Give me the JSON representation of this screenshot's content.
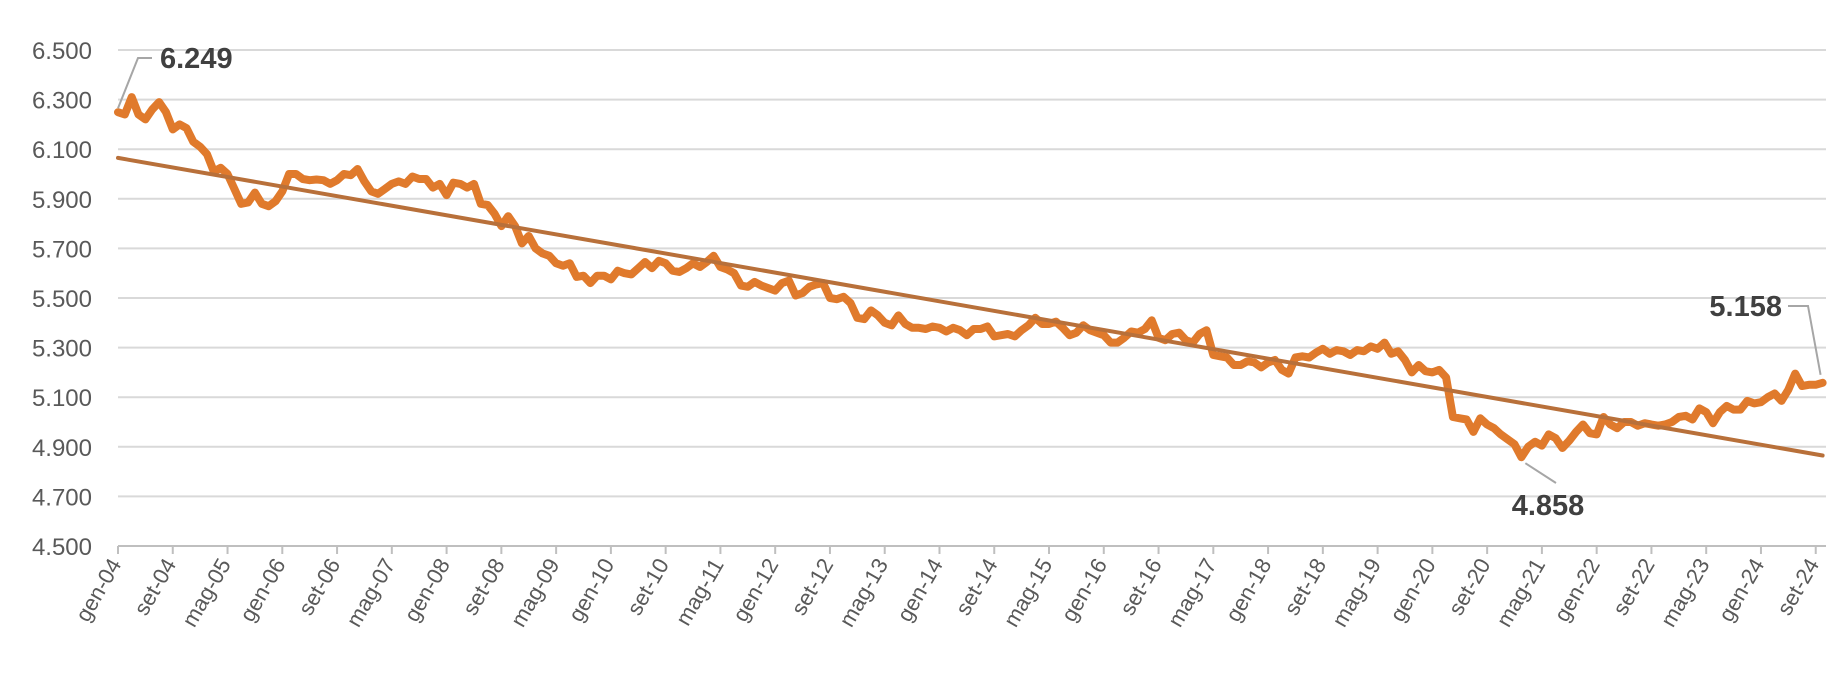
{
  "chart_data": {
    "type": "line",
    "title": "",
    "xlabel": "",
    "ylabel": "",
    "ylim": [
      4500,
      6500
    ],
    "yticks": [
      4500,
      4700,
      4900,
      5100,
      5300,
      5500,
      5700,
      5900,
      6100,
      6300,
      6500
    ],
    "ytick_labels": [
      "4.500",
      "4.700",
      "4.900",
      "5.100",
      "5.300",
      "5.500",
      "5.700",
      "5.900",
      "6.100",
      "6.300",
      "6.500"
    ],
    "grid": true,
    "legend": "none",
    "x_range": [
      "2004-01",
      "2024-10"
    ],
    "x_ticks": [
      {
        "date": "2004-01",
        "label": "gen-04"
      },
      {
        "date": "2004-09",
        "label": "set-04"
      },
      {
        "date": "2005-05",
        "label": "mag-05"
      },
      {
        "date": "2006-01",
        "label": "gen-06"
      },
      {
        "date": "2006-09",
        "label": "set-06"
      },
      {
        "date": "2007-05",
        "label": "mag-07"
      },
      {
        "date": "2008-01",
        "label": "gen-08"
      },
      {
        "date": "2008-09",
        "label": "set-08"
      },
      {
        "date": "2009-05",
        "label": "mag-09"
      },
      {
        "date": "2010-01",
        "label": "gen-10"
      },
      {
        "date": "2010-09",
        "label": "set-10"
      },
      {
        "date": "2011-05",
        "label": "mag-11"
      },
      {
        "date": "2012-01",
        "label": "gen-12"
      },
      {
        "date": "2012-09",
        "label": "set-12"
      },
      {
        "date": "2013-05",
        "label": "mag-13"
      },
      {
        "date": "2014-01",
        "label": "gen-14"
      },
      {
        "date": "2014-09",
        "label": "set-14"
      },
      {
        "date": "2015-05",
        "label": "mag-15"
      },
      {
        "date": "2016-01",
        "label": "gen-16"
      },
      {
        "date": "2016-09",
        "label": "set-16"
      },
      {
        "date": "2017-05",
        "label": "mag-17"
      },
      {
        "date": "2018-01",
        "label": "gen-18"
      },
      {
        "date": "2018-09",
        "label": "set-18"
      },
      {
        "date": "2019-05",
        "label": "mag-19"
      },
      {
        "date": "2020-01",
        "label": "gen-20"
      },
      {
        "date": "2020-09",
        "label": "set-20"
      },
      {
        "date": "2021-05",
        "label": "mag-21"
      },
      {
        "date": "2022-01",
        "label": "gen-22"
      },
      {
        "date": "2022-09",
        "label": "set-22"
      },
      {
        "date": "2023-05",
        "label": "mag-23"
      },
      {
        "date": "2024-01",
        "label": "gen-24"
      },
      {
        "date": "2024-09",
        "label": "set-24"
      }
    ],
    "series": [
      {
        "color": "#E07A2C",
        "points": [
          [
            "2004-01",
            6249
          ],
          [
            "2004-02",
            6240
          ],
          [
            "2004-03",
            6310
          ],
          [
            "2004-04",
            6240
          ],
          [
            "2004-05",
            6220
          ],
          [
            "2004-06",
            6260
          ],
          [
            "2004-07",
            6290
          ],
          [
            "2004-08",
            6250
          ],
          [
            "2004-09",
            6180
          ],
          [
            "2004-10",
            6200
          ],
          [
            "2004-11",
            6185
          ],
          [
            "2004-12",
            6130
          ],
          [
            "2005-01",
            6110
          ],
          [
            "2005-02",
            6080
          ],
          [
            "2005-03",
            6010
          ],
          [
            "2005-04",
            6025
          ],
          [
            "2005-05",
            6000
          ],
          [
            "2005-06",
            5940
          ],
          [
            "2005-07",
            5880
          ],
          [
            "2005-08",
            5885
          ],
          [
            "2005-09",
            5925
          ],
          [
            "2005-10",
            5880
          ],
          [
            "2005-11",
            5870
          ],
          [
            "2005-12",
            5890
          ],
          [
            "2006-01",
            5930
          ],
          [
            "2006-02",
            6000
          ],
          [
            "2006-03",
            6000
          ],
          [
            "2006-04",
            5980
          ],
          [
            "2006-05",
            5975
          ],
          [
            "2006-06",
            5978
          ],
          [
            "2006-07",
            5975
          ],
          [
            "2006-08",
            5960
          ],
          [
            "2006-09",
            5975
          ],
          [
            "2006-10",
            6000
          ],
          [
            "2006-11",
            5995
          ],
          [
            "2006-12",
            6020
          ],
          [
            "2007-01",
            5970
          ],
          [
            "2007-02",
            5930
          ],
          [
            "2007-03",
            5920
          ],
          [
            "2007-04",
            5940
          ],
          [
            "2007-05",
            5960
          ],
          [
            "2007-06",
            5970
          ],
          [
            "2007-07",
            5960
          ],
          [
            "2007-08",
            5990
          ],
          [
            "2007-09",
            5980
          ],
          [
            "2007-10",
            5980
          ],
          [
            "2007-11",
            5945
          ],
          [
            "2007-12",
            5960
          ],
          [
            "2008-01",
            5915
          ],
          [
            "2008-02",
            5965
          ],
          [
            "2008-03",
            5960
          ],
          [
            "2008-04",
            5945
          ],
          [
            "2008-05",
            5960
          ],
          [
            "2008-06",
            5880
          ],
          [
            "2008-07",
            5875
          ],
          [
            "2008-08",
            5840
          ],
          [
            "2008-09",
            5790
          ],
          [
            "2008-10",
            5830
          ],
          [
            "2008-11",
            5790
          ],
          [
            "2008-12",
            5720
          ],
          [
            "2009-01",
            5750
          ],
          [
            "2009-02",
            5700
          ],
          [
            "2009-03",
            5680
          ],
          [
            "2009-04",
            5670
          ],
          [
            "2009-05",
            5640
          ],
          [
            "2009-06",
            5630
          ],
          [
            "2009-07",
            5640
          ],
          [
            "2009-08",
            5585
          ],
          [
            "2009-09",
            5590
          ],
          [
            "2009-10",
            5560
          ],
          [
            "2009-11",
            5590
          ],
          [
            "2009-12",
            5590
          ],
          [
            "2010-01",
            5575
          ],
          [
            "2010-02",
            5610
          ],
          [
            "2010-03",
            5600
          ],
          [
            "2010-04",
            5595
          ],
          [
            "2010-05",
            5620
          ],
          [
            "2010-06",
            5645
          ],
          [
            "2010-07",
            5620
          ],
          [
            "2010-08",
            5650
          ],
          [
            "2010-09",
            5640
          ],
          [
            "2010-10",
            5610
          ],
          [
            "2010-11",
            5605
          ],
          [
            "2010-12",
            5620
          ],
          [
            "2011-01",
            5640
          ],
          [
            "2011-02",
            5625
          ],
          [
            "2011-03",
            5645
          ],
          [
            "2011-04",
            5670
          ],
          [
            "2011-05",
            5625
          ],
          [
            "2011-06",
            5615
          ],
          [
            "2011-07",
            5600
          ],
          [
            "2011-08",
            5550
          ],
          [
            "2011-09",
            5545
          ],
          [
            "2011-10",
            5565
          ],
          [
            "2011-11",
            5550
          ],
          [
            "2011-12",
            5540
          ],
          [
            "2012-01",
            5530
          ],
          [
            "2012-02",
            5560
          ],
          [
            "2012-03",
            5570
          ],
          [
            "2012-04",
            5510
          ],
          [
            "2012-05",
            5520
          ],
          [
            "2012-06",
            5545
          ],
          [
            "2012-07",
            5555
          ],
          [
            "2012-08",
            5560
          ],
          [
            "2012-09",
            5500
          ],
          [
            "2012-10",
            5495
          ],
          [
            "2012-11",
            5505
          ],
          [
            "2012-12",
            5480
          ],
          [
            "2013-01",
            5420
          ],
          [
            "2013-02",
            5415
          ],
          [
            "2013-03",
            5450
          ],
          [
            "2013-04",
            5430
          ],
          [
            "2013-05",
            5400
          ],
          [
            "2013-06",
            5390
          ],
          [
            "2013-07",
            5430
          ],
          [
            "2013-08",
            5395
          ],
          [
            "2013-09",
            5380
          ],
          [
            "2013-10",
            5380
          ],
          [
            "2013-11",
            5375
          ],
          [
            "2013-12",
            5385
          ],
          [
            "2014-01",
            5380
          ],
          [
            "2014-02",
            5365
          ],
          [
            "2014-03",
            5380
          ],
          [
            "2014-04",
            5370
          ],
          [
            "2014-05",
            5350
          ],
          [
            "2014-06",
            5375
          ],
          [
            "2014-07",
            5375
          ],
          [
            "2014-08",
            5385
          ],
          [
            "2014-09",
            5345
          ],
          [
            "2014-10",
            5350
          ],
          [
            "2014-11",
            5355
          ],
          [
            "2014-12",
            5345
          ],
          [
            "2015-01",
            5370
          ],
          [
            "2015-02",
            5390
          ],
          [
            "2015-03",
            5420
          ],
          [
            "2015-04",
            5395
          ],
          [
            "2015-05",
            5395
          ],
          [
            "2015-06",
            5405
          ],
          [
            "2015-07",
            5380
          ],
          [
            "2015-08",
            5350
          ],
          [
            "2015-09",
            5360
          ],
          [
            "2015-10",
            5390
          ],
          [
            "2015-11",
            5370
          ],
          [
            "2015-12",
            5360
          ],
          [
            "2016-01",
            5350
          ],
          [
            "2016-02",
            5320
          ],
          [
            "2016-03",
            5320
          ],
          [
            "2016-04",
            5340
          ],
          [
            "2016-05",
            5365
          ],
          [
            "2016-06",
            5360
          ],
          [
            "2016-07",
            5375
          ],
          [
            "2016-08",
            5410
          ],
          [
            "2016-09",
            5340
          ],
          [
            "2016-10",
            5330
          ],
          [
            "2016-11",
            5355
          ],
          [
            "2016-12",
            5360
          ],
          [
            "2017-01",
            5330
          ],
          [
            "2017-02",
            5320
          ],
          [
            "2017-03",
            5355
          ],
          [
            "2017-04",
            5370
          ],
          [
            "2017-05",
            5270
          ],
          [
            "2017-06",
            5265
          ],
          [
            "2017-07",
            5260
          ],
          [
            "2017-08",
            5230
          ],
          [
            "2017-09",
            5230
          ],
          [
            "2017-10",
            5245
          ],
          [
            "2017-11",
            5240
          ],
          [
            "2017-12",
            5220
          ],
          [
            "2018-01",
            5240
          ],
          [
            "2018-02",
            5250
          ],
          [
            "2018-03",
            5210
          ],
          [
            "2018-04",
            5195
          ],
          [
            "2018-05",
            5260
          ],
          [
            "2018-06",
            5265
          ],
          [
            "2018-07",
            5260
          ],
          [
            "2018-08",
            5280
          ],
          [
            "2018-09",
            5295
          ],
          [
            "2018-10",
            5275
          ],
          [
            "2018-11",
            5290
          ],
          [
            "2018-12",
            5285
          ],
          [
            "2019-01",
            5270
          ],
          [
            "2019-02",
            5290
          ],
          [
            "2019-03",
            5285
          ],
          [
            "2019-04",
            5305
          ],
          [
            "2019-05",
            5295
          ],
          [
            "2019-06",
            5320
          ],
          [
            "2019-07",
            5275
          ],
          [
            "2019-08",
            5285
          ],
          [
            "2019-09",
            5250
          ],
          [
            "2019-10",
            5200
          ],
          [
            "2019-11",
            5230
          ],
          [
            "2019-12",
            5205
          ],
          [
            "2020-01",
            5200
          ],
          [
            "2020-02",
            5210
          ],
          [
            "2020-03",
            5180
          ],
          [
            "2020-04",
            5020
          ],
          [
            "2020-05",
            5015
          ],
          [
            "2020-06",
            5010
          ],
          [
            "2020-07",
            4960
          ],
          [
            "2020-08",
            5015
          ],
          [
            "2020-09",
            4990
          ],
          [
            "2020-10",
            4975
          ],
          [
            "2020-11",
            4950
          ],
          [
            "2020-12",
            4930
          ],
          [
            "2021-01",
            4910
          ],
          [
            "2021-02",
            4858
          ],
          [
            "2021-03",
            4900
          ],
          [
            "2021-04",
            4920
          ],
          [
            "2021-05",
            4905
          ],
          [
            "2021-06",
            4950
          ],
          [
            "2021-07",
            4935
          ],
          [
            "2021-08",
            4895
          ],
          [
            "2021-09",
            4925
          ],
          [
            "2021-10",
            4960
          ],
          [
            "2021-11",
            4990
          ],
          [
            "2021-12",
            4955
          ],
          [
            "2022-01",
            4950
          ],
          [
            "2022-02",
            5020
          ],
          [
            "2022-03",
            4990
          ],
          [
            "2022-04",
            4975
          ],
          [
            "2022-05",
            5000
          ],
          [
            "2022-06",
            5000
          ],
          [
            "2022-07",
            4985
          ],
          [
            "2022-08",
            4995
          ],
          [
            "2022-09",
            4990
          ],
          [
            "2022-10",
            4985
          ],
          [
            "2022-11",
            4990
          ],
          [
            "2022-12",
            5000
          ],
          [
            "2023-01",
            5020
          ],
          [
            "2023-02",
            5025
          ],
          [
            "2023-03",
            5010
          ],
          [
            "2023-04",
            5055
          ],
          [
            "2023-05",
            5040
          ],
          [
            "2023-06",
            4995
          ],
          [
            "2023-07",
            5040
          ],
          [
            "2023-08",
            5065
          ],
          [
            "2023-09",
            5050
          ],
          [
            "2023-10",
            5050
          ],
          [
            "2023-11",
            5085
          ],
          [
            "2023-12",
            5075
          ],
          [
            "2024-01",
            5080
          ],
          [
            "2024-02",
            5100
          ],
          [
            "2024-03",
            5115
          ],
          [
            "2024-04",
            5085
          ],
          [
            "2024-05",
            5130
          ],
          [
            "2024-06",
            5195
          ],
          [
            "2024-07",
            5145
          ],
          [
            "2024-08",
            5150
          ],
          [
            "2024-09",
            5150
          ],
          [
            "2024-10",
            5158
          ]
        ]
      },
      {
        "color": "#B8703A",
        "points": [
          [
            "2004-01",
            6065
          ],
          [
            "2024-10",
            4865
          ]
        ]
      }
    ],
    "annotations": [
      {
        "text": "6.249",
        "date": "2004-01",
        "value": 6249
      },
      {
        "text": "4.858",
        "date": "2021-02",
        "value": 4858
      },
      {
        "text": "5.158",
        "date": "2024-10",
        "value": 5158
      }
    ]
  }
}
